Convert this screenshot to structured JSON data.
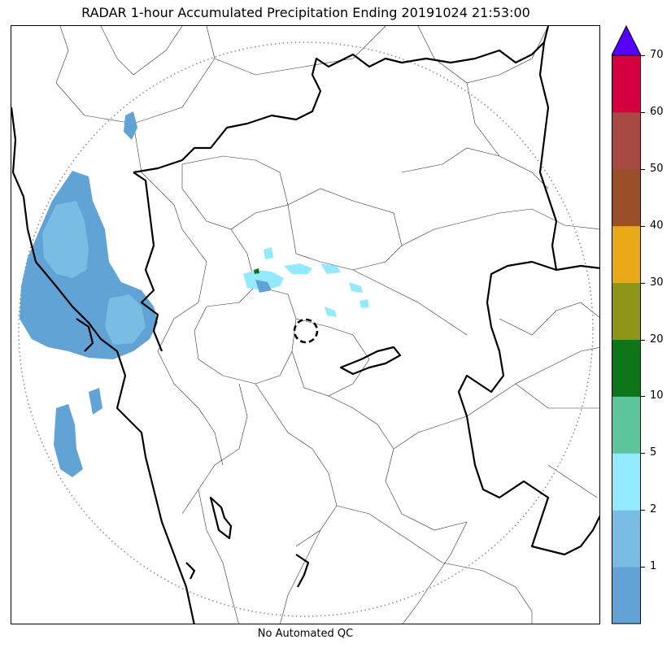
{
  "title": "RADAR 1-hour Accumulated Precipitation Ending 20191024 21:53:00",
  "qc_label": "No Automated QC",
  "colorbar": {
    "levels": [
      "",
      "1",
      "2",
      "5",
      "10",
      "20",
      "30",
      "40",
      "50",
      "60",
      "70"
    ],
    "colors": [
      "#62a3d6",
      "#79bde4",
      "#94eafd",
      "#5dc59c",
      "#0e7518",
      "#8c9516",
      "#e9a818",
      "#9a4f28",
      "#a84a43",
      "#d5003f"
    ],
    "extend_color": "#5500ff"
  },
  "map_colors": {
    "rain_light": "#62a3d6",
    "rain_medium": "#79bde4",
    "rain_cyan": "#94eafd",
    "rain_green": "#0e7518"
  }
}
